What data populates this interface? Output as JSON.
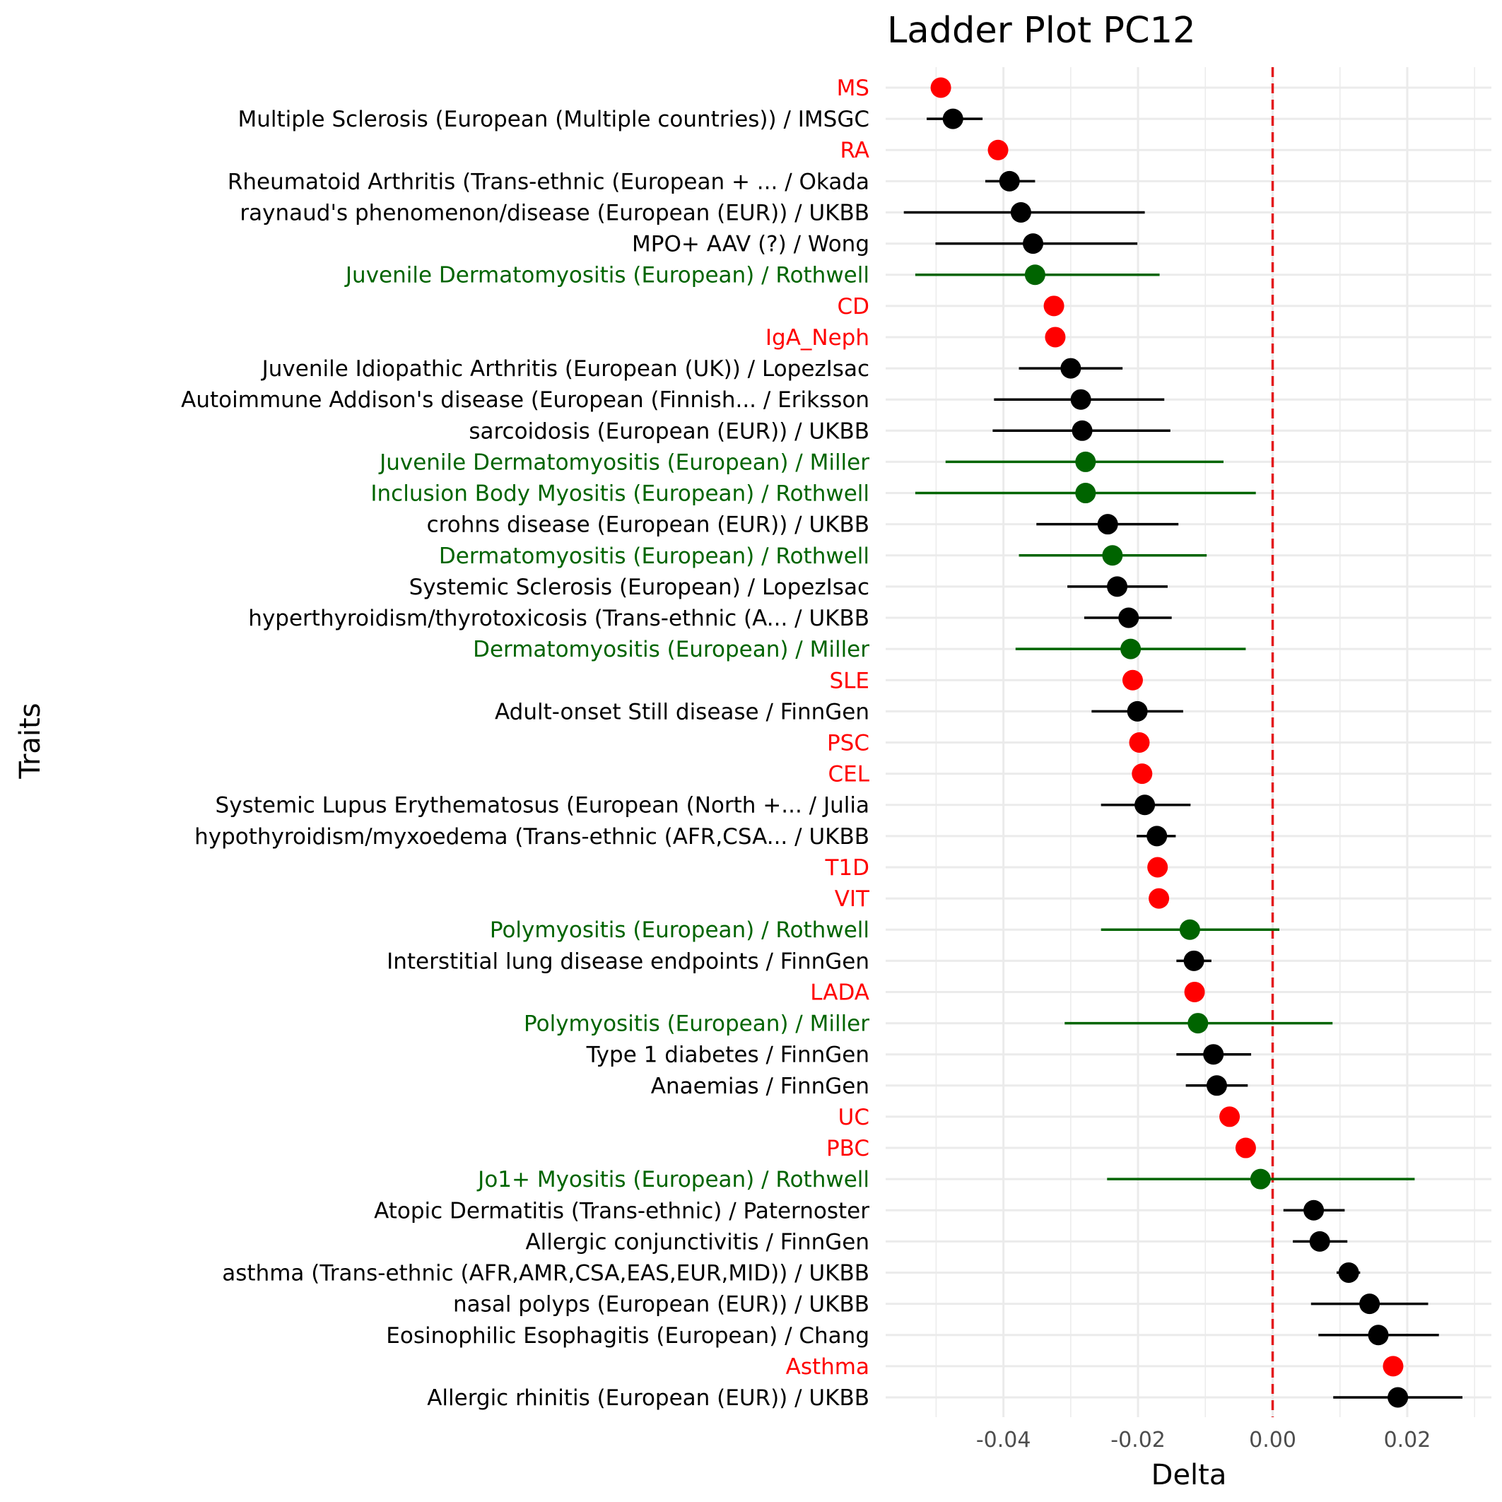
{
  "chart_data": {
    "type": "scatter",
    "title": "Ladder Plot PC12",
    "xlabel": "Delta",
    "ylabel": "Traits",
    "xlim": [
      -0.0575,
      0.0325
    ],
    "xticks": [
      -0.04,
      -0.02,
      0.0,
      0.02
    ],
    "xtick_labels": [
      "-0.04",
      "-0.02",
      "0.00",
      "0.02"
    ],
    "reference_line": {
      "x": 0.0,
      "color": "#e31a1c",
      "style": "dashed"
    },
    "grid": true,
    "colors": {
      "red": "#ff0000",
      "green": "#006400",
      "black": "#000000"
    },
    "traits": [
      {
        "label": "MS",
        "value": -0.0493,
        "low": null,
        "high": null,
        "color": "red"
      },
      {
        "label": "Multiple Sclerosis (European (Multiple countries)) / IMSGC",
        "value": -0.0475,
        "low": -0.0514,
        "high": -0.0431,
        "color": "black"
      },
      {
        "label": "RA",
        "value": -0.0408,
        "low": null,
        "high": null,
        "color": "red"
      },
      {
        "label": "Rheumatoid Arthritis (Trans-ethnic (European + ... / Okada",
        "value": -0.0391,
        "low": -0.0427,
        "high": -0.0353,
        "color": "black"
      },
      {
        "label": "raynaud's phenomenon/disease (European (EUR)) / UKBB",
        "value": -0.0374,
        "low": -0.0548,
        "high": -0.019,
        "color": "black"
      },
      {
        "label": "MPO+ AAV (?) / Wong",
        "value": -0.0356,
        "low": -0.0501,
        "high": -0.0201,
        "color": "black"
      },
      {
        "label": "Juvenile Dermatomyositis (European) / Rothwell",
        "value": -0.0353,
        "low": -0.0531,
        "high": -0.0168,
        "color": "green"
      },
      {
        "label": "CD",
        "value": -0.0325,
        "low": null,
        "high": null,
        "color": "red"
      },
      {
        "label": "IgA_Neph",
        "value": -0.0323,
        "low": null,
        "high": null,
        "color": "red"
      },
      {
        "label": "Juvenile Idiopathic Arthritis (European (UK)) / LopezIsac",
        "value": -0.03,
        "low": -0.0377,
        "high": -0.0223,
        "color": "black"
      },
      {
        "label": "Autoimmune Addison's disease (European (Finnish... / Eriksson",
        "value": -0.0285,
        "low": -0.0414,
        "high": -0.0161,
        "color": "black"
      },
      {
        "label": "sarcoidosis (European (EUR)) / UKBB",
        "value": -0.0283,
        "low": -0.0416,
        "high": -0.0152,
        "color": "black"
      },
      {
        "label": "Juvenile Dermatomyositis (European) / Miller",
        "value": -0.0278,
        "low": -0.0486,
        "high": -0.0073,
        "color": "green"
      },
      {
        "label": "Inclusion Body Myositis (European) / Rothwell",
        "value": -0.0278,
        "low": -0.0531,
        "high": -0.0025,
        "color": "green"
      },
      {
        "label": "crohns disease (European (EUR)) / UKBB",
        "value": -0.0245,
        "low": -0.0351,
        "high": -0.014,
        "color": "black"
      },
      {
        "label": "Dermatomyositis (European) / Rothwell",
        "value": -0.0238,
        "low": -0.0377,
        "high": -0.0098,
        "color": "green"
      },
      {
        "label": "Systemic Sclerosis (European) / LopezIsac",
        "value": -0.0231,
        "low": -0.0305,
        "high": -0.0156,
        "color": "black"
      },
      {
        "label": "hyperthyroidism/thyrotoxicosis (Trans-ethnic (A... / UKBB",
        "value": -0.0214,
        "low": -0.028,
        "high": -0.015,
        "color": "black"
      },
      {
        "label": "Dermatomyositis (European) / Miller",
        "value": -0.0211,
        "low": -0.0382,
        "high": -0.004,
        "color": "green"
      },
      {
        "label": "SLE",
        "value": -0.0208,
        "low": null,
        "high": null,
        "color": "red"
      },
      {
        "label": "Adult-onset Still disease / FinnGen",
        "value": -0.0201,
        "low": -0.0269,
        "high": -0.0133,
        "color": "black"
      },
      {
        "label": "PSC",
        "value": -0.0198,
        "low": null,
        "high": null,
        "color": "red"
      },
      {
        "label": "CEL",
        "value": -0.0194,
        "low": null,
        "high": null,
        "color": "red"
      },
      {
        "label": "Systemic Lupus Erythematosus (European (North +... / Julia",
        "value": -0.019,
        "low": -0.0255,
        "high": -0.0122,
        "color": "black"
      },
      {
        "label": "hypothyroidism/myxoedema (Trans-ethnic (AFR,CSA... / UKBB",
        "value": -0.0172,
        "low": -0.0202,
        "high": -0.0144,
        "color": "black"
      },
      {
        "label": "T1D",
        "value": -0.0171,
        "low": null,
        "high": null,
        "color": "red"
      },
      {
        "label": "VIT",
        "value": -0.0169,
        "low": null,
        "high": null,
        "color": "red"
      },
      {
        "label": "Polymyositis (European) / Rothwell",
        "value": -0.0123,
        "low": -0.0255,
        "high": 0.001,
        "color": "green"
      },
      {
        "label": "Interstitial lung disease endpoints / FinnGen",
        "value": -0.0117,
        "low": -0.0143,
        "high": -0.0091,
        "color": "black"
      },
      {
        "label": "LADA",
        "value": -0.0116,
        "low": null,
        "high": null,
        "color": "red"
      },
      {
        "label": "Polymyositis (European) / Miller",
        "value": -0.0111,
        "low": -0.0309,
        "high": 0.0089,
        "color": "green"
      },
      {
        "label": "Type 1 diabetes / FinnGen",
        "value": -0.0088,
        "low": -0.0143,
        "high": -0.0032,
        "color": "black"
      },
      {
        "label": "Anaemias / FinnGen",
        "value": -0.0083,
        "low": -0.0129,
        "high": -0.0037,
        "color": "black"
      },
      {
        "label": "UC",
        "value": -0.0064,
        "low": null,
        "high": null,
        "color": "red"
      },
      {
        "label": "PBC",
        "value": -0.004,
        "low": null,
        "high": null,
        "color": "red"
      },
      {
        "label": "Jo1+ Myositis (European) / Rothwell",
        "value": -0.0018,
        "low": -0.0246,
        "high": 0.0211,
        "color": "green"
      },
      {
        "label": "Atopic Dermatitis (Trans-ethnic) / Paternoster",
        "value": 0.0061,
        "low": 0.0016,
        "high": 0.0107,
        "color": "black"
      },
      {
        "label": "Allergic conjunctivitis / FinnGen",
        "value": 0.007,
        "low": 0.003,
        "high": 0.0111,
        "color": "black"
      },
      {
        "label": "asthma (Trans-ethnic (AFR,AMR,CSA,EAS,EUR,MID)) / UKBB",
        "value": 0.0113,
        "low": 0.0095,
        "high": 0.013,
        "color": "black"
      },
      {
        "label": "nasal polyps (European (EUR)) / UKBB",
        "value": 0.0144,
        "low": 0.0057,
        "high": 0.0231,
        "color": "black"
      },
      {
        "label": "Eosinophilic Esophagitis (European) / Chang",
        "value": 0.0157,
        "low": 0.0068,
        "high": 0.0247,
        "color": "black"
      },
      {
        "label": "Asthma",
        "value": 0.0179,
        "low": null,
        "high": null,
        "color": "red"
      },
      {
        "label": "Allergic rhinitis (European (EUR)) / UKBB",
        "value": 0.0186,
        "low": 0.009,
        "high": 0.0282,
        "color": "black"
      }
    ]
  }
}
